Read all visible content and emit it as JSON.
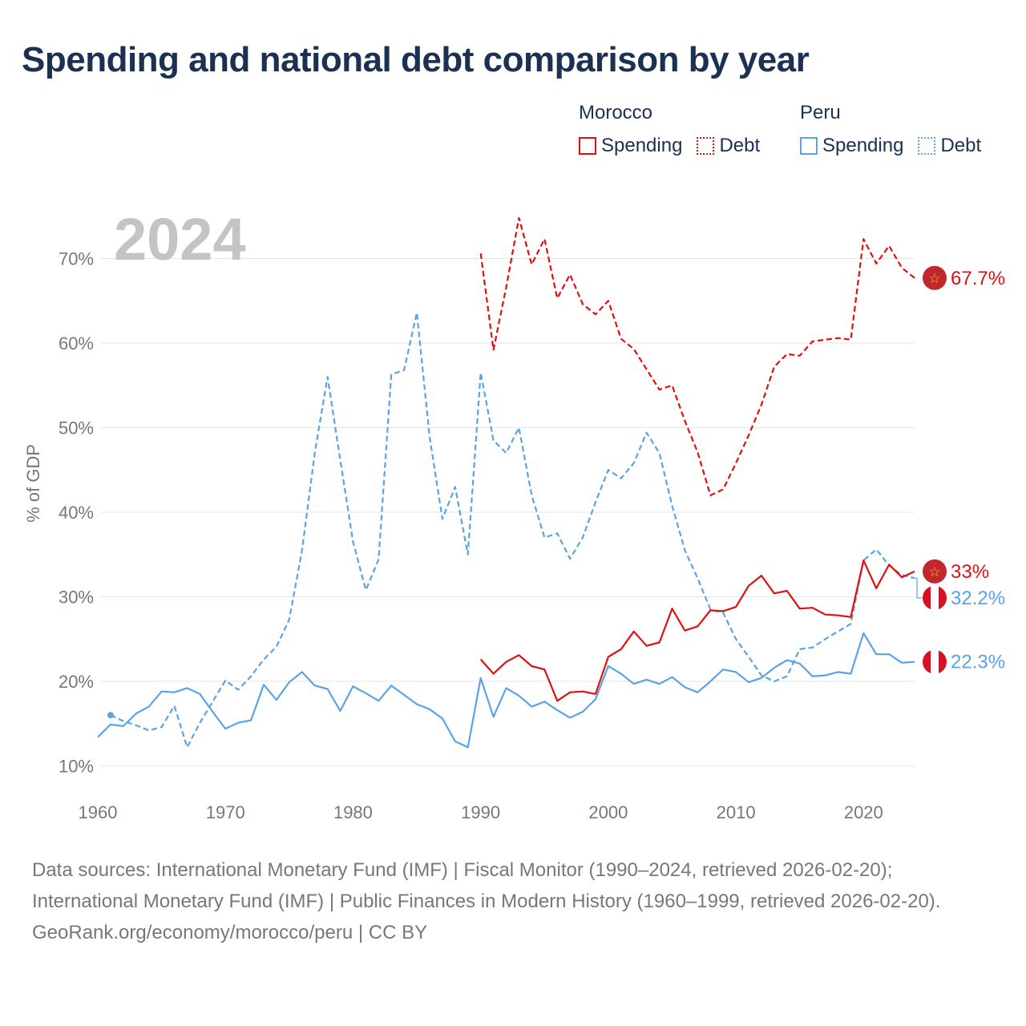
{
  "title": "Spending and national debt comparison by year",
  "legend": {
    "groups": [
      {
        "name": "Morocco",
        "color": "#e01010",
        "items": [
          {
            "label": "Spending",
            "style": "solid"
          },
          {
            "label": "Debt",
            "style": "dotted"
          }
        ]
      },
      {
        "name": "Peru",
        "color": "#5ba3e6",
        "items": [
          {
            "label": "Spending",
            "style": "solid"
          },
          {
            "label": "Debt",
            "style": "dotted"
          }
        ]
      }
    ]
  },
  "chart_data": {
    "type": "line",
    "year_label": "2024",
    "ylabel": "% of GDP",
    "xlim": [
      1960,
      2024
    ],
    "ylim": [
      10,
      75
    ],
    "xticks": [
      1960,
      1970,
      1980,
      1990,
      2000,
      2010,
      2020
    ],
    "yticks": [
      10,
      20,
      30,
      40,
      50,
      60,
      70
    ],
    "ytick_labels": [
      "10%",
      "20%",
      "30%",
      "40%",
      "50%",
      "60%",
      "70%"
    ],
    "series": [
      {
        "name": "Peru Spending",
        "country": "Peru",
        "metric": "Spending",
        "color": "#5ba3e6",
        "dashed": false,
        "x": [
          1960,
          1961,
          1962,
          1963,
          1964,
          1965,
          1966,
          1967,
          1968,
          1969,
          1970,
          1971,
          1972,
          1973,
          1974,
          1975,
          1976,
          1977,
          1978,
          1979,
          1980,
          1981,
          1982,
          1983,
          1984,
          1985,
          1986,
          1987,
          1988,
          1989,
          1990,
          1991,
          1992,
          1993,
          1994,
          1995,
          1996,
          1997,
          1998,
          1999,
          2000,
          2001,
          2002,
          2003,
          2004,
          2005,
          2006,
          2007,
          2008,
          2009,
          2010,
          2011,
          2012,
          2013,
          2014,
          2015,
          2016,
          2017,
          2018,
          2019,
          2020,
          2021,
          2022,
          2023,
          2024
        ],
        "y": [
          13.4,
          14.9,
          14.7,
          16.2,
          17.0,
          18.8,
          18.7,
          19.2,
          18.5,
          16.4,
          14.4,
          15.1,
          15.4,
          19.6,
          17.8,
          19.9,
          21.1,
          19.5,
          19.1,
          16.5,
          19.4,
          18.6,
          17.7,
          19.5,
          18.4,
          17.3,
          16.7,
          15.6,
          12.9,
          12.2,
          20.4,
          15.8,
          19.2,
          18.3,
          17.0,
          17.6,
          16.6,
          15.7,
          16.4,
          17.9,
          21.8,
          20.9,
          19.7,
          20.2,
          19.7,
          20.5,
          19.3,
          18.7,
          20.0,
          21.4,
          21.1,
          19.9,
          20.4,
          21.6,
          22.5,
          22.1,
          20.6,
          20.7,
          21.1,
          20.9,
          25.7,
          23.2,
          23.2,
          22.2,
          22.3
        ]
      },
      {
        "name": "Peru Debt",
        "country": "Peru",
        "metric": "Debt",
        "color": "#5ba3e6",
        "dashed": true,
        "x": [
          1961,
          1962,
          1963,
          1964,
          1965,
          1966,
          1967,
          1968,
          1969,
          1970,
          1971,
          1972,
          1973,
          1974,
          1975,
          1976,
          1977,
          1978,
          1979,
          1980,
          1981,
          1982,
          1983,
          1984,
          1985,
          1986,
          1987,
          1988,
          1989,
          1990,
          1991,
          1992,
          1993,
          1994,
          1995,
          1996,
          1997,
          1998,
          1999,
          2000,
          2001,
          2002,
          2003,
          2004,
          2005,
          2006,
          2007,
          2008,
          2009,
          2010,
          2011,
          2012,
          2013,
          2014,
          2015,
          2016,
          2017,
          2018,
          2019,
          2020,
          2021,
          2022,
          2023,
          2024
        ],
        "y": [
          16.0,
          15.3,
          14.8,
          14.2,
          14.6,
          17.1,
          12.2,
          15.1,
          17.6,
          20.1,
          19.0,
          20.6,
          22.6,
          24.1,
          27.3,
          35.5,
          47.0,
          56.0,
          46.2,
          36.5,
          30.8,
          34.4,
          56.3,
          56.8,
          63.6,
          48.9,
          39.2,
          43.0,
          35.0,
          56.5,
          48.5,
          47.0,
          50.0,
          42.0,
          37.0,
          37.5,
          34.5,
          37.0,
          41.2,
          45.0,
          44.0,
          45.8,
          49.4,
          47.0,
          40.8,
          35.5,
          32.2,
          28.5,
          28.1,
          25.0,
          22.9,
          20.7,
          20.0,
          20.6,
          23.8,
          24.0,
          25.0,
          25.9,
          26.8,
          34.3,
          35.6,
          33.7,
          32.6,
          32.2
        ]
      },
      {
        "name": "Morocco Spending",
        "country": "Morocco",
        "metric": "Spending",
        "color": "#e01010",
        "dashed": false,
        "x": [
          1990,
          1991,
          1992,
          1993,
          1994,
          1995,
          1996,
          1997,
          1998,
          1999,
          2000,
          2001,
          2002,
          2003,
          2004,
          2005,
          2006,
          2007,
          2008,
          2009,
          2010,
          2011,
          2012,
          2013,
          2014,
          2015,
          2016,
          2017,
          2018,
          2019,
          2020,
          2021,
          2022,
          2023,
          2024
        ],
        "y": [
          22.6,
          20.9,
          22.3,
          23.1,
          21.8,
          21.4,
          17.7,
          18.7,
          18.8,
          18.5,
          22.9,
          23.8,
          25.9,
          24.2,
          24.6,
          28.6,
          26.0,
          26.5,
          28.4,
          28.3,
          28.8,
          31.3,
          32.5,
          30.4,
          30.7,
          28.6,
          28.7,
          27.9,
          27.8,
          27.6,
          34.3,
          31.0,
          33.8,
          32.3,
          33.0
        ]
      },
      {
        "name": "Morocco Debt",
        "country": "Morocco",
        "metric": "Debt",
        "color": "#e01010",
        "dashed": true,
        "x": [
          1990,
          1991,
          1992,
          1993,
          1994,
          1995,
          1996,
          1997,
          1998,
          1999,
          2000,
          2001,
          2002,
          2003,
          2004,
          2005,
          2006,
          2007,
          2008,
          2009,
          2010,
          2011,
          2012,
          2013,
          2014,
          2015,
          2016,
          2017,
          2018,
          2019,
          2020,
          2021,
          2022,
          2023,
          2024
        ],
        "y": [
          70.6,
          59.2,
          66.6,
          74.8,
          69.3,
          72.3,
          65.3,
          68.1,
          64.6,
          63.4,
          65.0,
          60.5,
          59.3,
          56.9,
          54.5,
          55.0,
          50.8,
          47.1,
          42.0,
          42.7,
          45.8,
          49.1,
          52.7,
          57.2,
          58.7,
          58.5,
          60.2,
          60.4,
          60.6,
          60.4,
          72.3,
          69.4,
          71.5,
          68.9,
          67.7
        ]
      }
    ],
    "end_labels": [
      {
        "series": "Morocco Debt",
        "text": "67.7%",
        "value": 67.7,
        "color": "#e01010",
        "flag": "morocco"
      },
      {
        "series": "Morocco Spending",
        "text": "33%",
        "value": 33.0,
        "color": "#e01010",
        "flag": "morocco"
      },
      {
        "series": "Peru Debt",
        "text": "32.2%",
        "value": 32.2,
        "color": "#5ba3e6",
        "flag": "peru"
      },
      {
        "series": "Peru Spending",
        "text": "22.3%",
        "value": 22.3,
        "color": "#5ba3e6",
        "flag": "peru"
      }
    ]
  },
  "footer": {
    "sources": "Data sources: International Monetary Fund (IMF) | Fiscal Monitor (1990–2024, retrieved 2026-02-20); International Monetary Fund (IMF) | Public Finances in Modern History (1960–1999, retrieved 2026-02-20).",
    "credit": "GeoRank.org/economy/morocco/peru | CC BY"
  }
}
